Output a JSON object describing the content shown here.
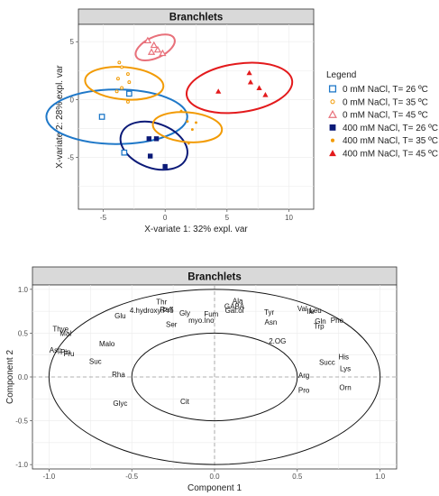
{
  "colors": {
    "blue": "#1f78c8",
    "navy": "#0b1a78",
    "orange": "#f29b05",
    "red": "#e31a1c",
    "pink": "#e8707a"
  },
  "chart_data": [
    {
      "type": "scatter",
      "title": "Branchlets",
      "xlabel": "X-variate 1: 32% expl. var",
      "ylabel": "X-variate 2: 28% expl. var",
      "xlim": [
        -7,
        12
      ],
      "ylim": [
        -9.5,
        6.5
      ],
      "xticks": [
        -5,
        0,
        5,
        10
      ],
      "yticks": [
        -5,
        0,
        5
      ],
      "grid": true,
      "legend": {
        "title": "Legend",
        "position": "right",
        "entries": [
          {
            "label": "0 mM NaCl, T= 26 ºC",
            "marker": "open-square",
            "color": "#1f78c8"
          },
          {
            "label": "0 mM NaCl, T= 35 ºC",
            "marker": "open-circle",
            "color": "#f29b05"
          },
          {
            "label": "0 mM NaCl, T= 45 ºC",
            "marker": "open-triangle",
            "color": "#e8707a"
          },
          {
            "label": "400 mM NaCl, T= 26 ºC",
            "marker": "filled-square",
            "color": "#0b1a78"
          },
          {
            "label": "400 mM NaCl, T= 35 ºC",
            "marker": "filled-circle",
            "color": "#f29b05"
          },
          {
            "label": "400 mM NaCl, T= 45 ºC",
            "marker": "filled-triangle",
            "color": "#e31a1c"
          }
        ]
      },
      "series": [
        {
          "name": "0 mM NaCl, T= 26 ºC",
          "marker": "open-square",
          "color": "#1f78c8",
          "points": [
            [
              -2.9,
              0.5
            ],
            [
              -5.1,
              -1.5
            ],
            [
              -3.3,
              -4.6
            ]
          ],
          "ellipse": {
            "cx": -3.9,
            "cy": -1.5,
            "rx": 2.2,
            "ry": 6.1,
            "angle": 90
          }
        },
        {
          "name": "0 mM NaCl, T= 35 ºC",
          "marker": "open-circle",
          "color": "#f29b05",
          "points": [
            [
              -3.5,
              2.8
            ],
            [
              -3.0,
              2.2
            ],
            [
              -3.8,
              1.8
            ],
            [
              -2.9,
              1.5
            ],
            [
              -3.5,
              1.0
            ],
            [
              -3.9,
              0.7
            ],
            [
              -3.0,
              -0.2
            ],
            [
              -3.7,
              3.2
            ]
          ],
          "ellipse": {
            "cx": -3.3,
            "cy": 1.4,
            "rx": 1.3,
            "ry": 3.4,
            "angle": 95
          }
        },
        {
          "name": "0 mM NaCl, T= 45 ºC",
          "marker": "open-triangle",
          "color": "#e8707a",
          "points": [
            [
              -1.4,
              5.1
            ],
            [
              -0.9,
              4.7
            ],
            [
              -0.6,
              4.3
            ],
            [
              -0.2,
              4.0
            ],
            [
              -1.1,
              4.1
            ]
          ],
          "ellipse": {
            "cx": -0.8,
            "cy": 4.5,
            "rx": 1.7,
            "ry": 0.9,
            "angle": -25
          }
        },
        {
          "name": "400 mM NaCl, T= 26 ºC",
          "marker": "filled-square",
          "color": "#0b1a78",
          "points": [
            [
              -1.3,
              -3.4
            ],
            [
              -0.7,
              -3.4
            ],
            [
              -1.2,
              -4.9
            ],
            [
              0.0,
              -5.8
            ]
          ],
          "ellipse": {
            "cx": -0.9,
            "cy": -4.0,
            "rx": 1.8,
            "ry": 3.0,
            "angle": 110
          }
        },
        {
          "name": "400 mM NaCl, T= 35 ºC",
          "marker": "filled-circle",
          "color": "#f29b05",
          "points": [
            [
              1.3,
              -1.0
            ],
            [
              1.8,
              -1.9
            ],
            [
              2.2,
              -2.6
            ],
            [
              1.9,
              -3.8
            ],
            [
              2.5,
              -2.0
            ]
          ],
          "ellipse": {
            "cx": 1.8,
            "cy": -2.4,
            "rx": 1.2,
            "ry": 3.0,
            "angle": 95
          }
        },
        {
          "name": "400 mM NaCl, T= 45 ºC",
          "marker": "filled-triangle",
          "color": "#e31a1c",
          "points": [
            [
              6.8,
              2.3
            ],
            [
              6.9,
              1.5
            ],
            [
              4.3,
              0.7
            ],
            [
              8.1,
              0.4
            ],
            [
              7.6,
              1.0
            ]
          ],
          "ellipse": {
            "cx": 6.0,
            "cy": 1.0,
            "rx": 4.3,
            "ry": 2.1,
            "angle": -8
          }
        }
      ]
    },
    {
      "type": "scatter",
      "title": "Branchlets",
      "xlabel": "Component  1",
      "ylabel": "Component  2",
      "xlim": [
        -1.1,
        1.1
      ],
      "ylim": [
        -1.05,
        1.05
      ],
      "xticks": [
        "-1.0",
        "-0.5",
        "0.0",
        "0.5",
        "1.0"
      ],
      "yticks": [
        "-1.0",
        "-0.5",
        "0.0",
        "0.5",
        "1.0"
      ],
      "grid": true,
      "circles": [
        1.0,
        0.5
      ],
      "variables": [
        {
          "label": "Thr",
          "x": -0.32,
          "y": 0.86
        },
        {
          "label": "Ala",
          "x": 0.14,
          "y": 0.87
        },
        {
          "label": "GABA",
          "x": 0.12,
          "y": 0.81
        },
        {
          "label": "Gal.ol",
          "x": 0.12,
          "y": 0.76
        },
        {
          "label": "4.hydroxy.Pro",
          "x": -0.38,
          "y": 0.76
        },
        {
          "label": "Raff",
          "x": -0.29,
          "y": 0.77
        },
        {
          "label": "Gly",
          "x": -0.18,
          "y": 0.73
        },
        {
          "label": "Fum",
          "x": -0.02,
          "y": 0.72
        },
        {
          "label": "Tyr",
          "x": 0.33,
          "y": 0.74
        },
        {
          "label": "Val",
          "x": 0.53,
          "y": 0.78
        },
        {
          "label": "Ile",
          "x": 0.58,
          "y": 0.75
        },
        {
          "label": "Leu",
          "x": 0.61,
          "y": 0.76
        },
        {
          "label": "Glu",
          "x": -0.57,
          "y": 0.7
        },
        {
          "label": "myo.Ino",
          "x": -0.08,
          "y": 0.65
        },
        {
          "label": "Asn",
          "x": 0.34,
          "y": 0.63
        },
        {
          "label": "Gln",
          "x": 0.64,
          "y": 0.64
        },
        {
          "label": "Trp",
          "x": 0.63,
          "y": 0.58
        },
        {
          "label": "Phe",
          "x": 0.74,
          "y": 0.65
        },
        {
          "label": "Ser",
          "x": -0.26,
          "y": 0.6
        },
        {
          "label": "Thye",
          "x": -0.93,
          "y": 0.55
        },
        {
          "label": "Mal",
          "x": -0.9,
          "y": 0.5
        },
        {
          "label": "Malo",
          "x": -0.65,
          "y": 0.38
        },
        {
          "label": "2.OG",
          "x": 0.38,
          "y": 0.41
        },
        {
          "label": "Asp",
          "x": -0.96,
          "y": 0.31
        },
        {
          "label": "Pin",
          "x": -0.9,
          "y": 0.29
        },
        {
          "label": "Fru",
          "x": -0.88,
          "y": 0.27
        },
        {
          "label": "Suc",
          "x": -0.72,
          "y": 0.18
        },
        {
          "label": "Rha",
          "x": -0.58,
          "y": 0.03
        },
        {
          "label": "His",
          "x": 0.78,
          "y": 0.23
        },
        {
          "label": "Succ",
          "x": 0.68,
          "y": 0.17
        },
        {
          "label": "Lys",
          "x": 0.79,
          "y": 0.1
        },
        {
          "label": "Arg",
          "x": 0.54,
          "y": 0.02
        },
        {
          "label": "Orn",
          "x": 0.79,
          "y": -0.12
        },
        {
          "label": "Pro",
          "x": 0.54,
          "y": -0.15
        },
        {
          "label": "Glyc",
          "x": -0.57,
          "y": -0.3
        },
        {
          "label": "Cit",
          "x": -0.18,
          "y": -0.28
        }
      ]
    }
  ]
}
